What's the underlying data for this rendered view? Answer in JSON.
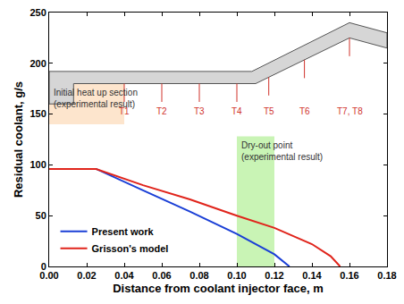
{
  "chart_data": {
    "type": "line",
    "x_label": "Distance from coolant injector face, m",
    "y_label": "Residual coolant, g/s",
    "xlim": [
      0,
      0.18
    ],
    "xticks": [
      {
        "value": 0,
        "label": "0.00"
      },
      {
        "value": 0.02,
        "label": "0.02"
      },
      {
        "value": 0.04,
        "label": "0.04"
      },
      {
        "value": 0.06,
        "label": "0.06"
      },
      {
        "value": 0.08,
        "label": "0.08"
      },
      {
        "value": 0.1,
        "label": "0.10"
      },
      {
        "value": 0.12,
        "label": "0.12"
      },
      {
        "value": 0.14,
        "label": "0.14"
      },
      {
        "value": 0.16,
        "label": "0.16"
      },
      {
        "value": 0.18,
        "label": "0.18"
      }
    ],
    "ylim": [
      0,
      250
    ],
    "yticks": [
      0,
      50,
      100,
      150,
      200,
      250
    ],
    "grid": false,
    "legend": "bottom left",
    "series": [
      {
        "name": "Present work",
        "color": "#1a3fd6",
        "x": [
          0,
          0.025,
          0.05,
          0.075,
          0.1,
          0.12,
          0.128
        ],
        "values": [
          96,
          96,
          75,
          54,
          32,
          12,
          0
        ]
      },
      {
        "name": "Grisson's model",
        "color": "#e0241b",
        "x": [
          0,
          0.025,
          0.05,
          0.075,
          0.1,
          0.12,
          0.14,
          0.15,
          0.155
        ],
        "values": [
          96,
          96,
          80,
          66,
          50,
          38,
          22,
          10,
          0
        ]
      }
    ],
    "regions": [
      {
        "lines": [
          "Initial heat up section",
          "(experimental result)"
        ],
        "x": [
          0,
          0.04
        ],
        "y": [
          140,
          180
        ],
        "color": "#fde0c4"
      },
      {
        "lines": [
          "Dry-out point",
          "(experimental result)"
        ],
        "x": [
          0.1,
          0.12
        ],
        "y": [
          0,
          128
        ],
        "color": "#bff2a8"
      }
    ],
    "annotations": [
      {
        "text": "T1",
        "x": 0.04
      },
      {
        "text": "T2",
        "x": 0.06
      },
      {
        "text": "T3",
        "x": 0.08
      },
      {
        "text": "T4",
        "x": 0.1
      },
      {
        "text": "T5",
        "x": 0.117
      },
      {
        "text": "T6",
        "x": 0.136
      },
      {
        "text": "T7, T8",
        "x": 0.16
      }
    ]
  }
}
